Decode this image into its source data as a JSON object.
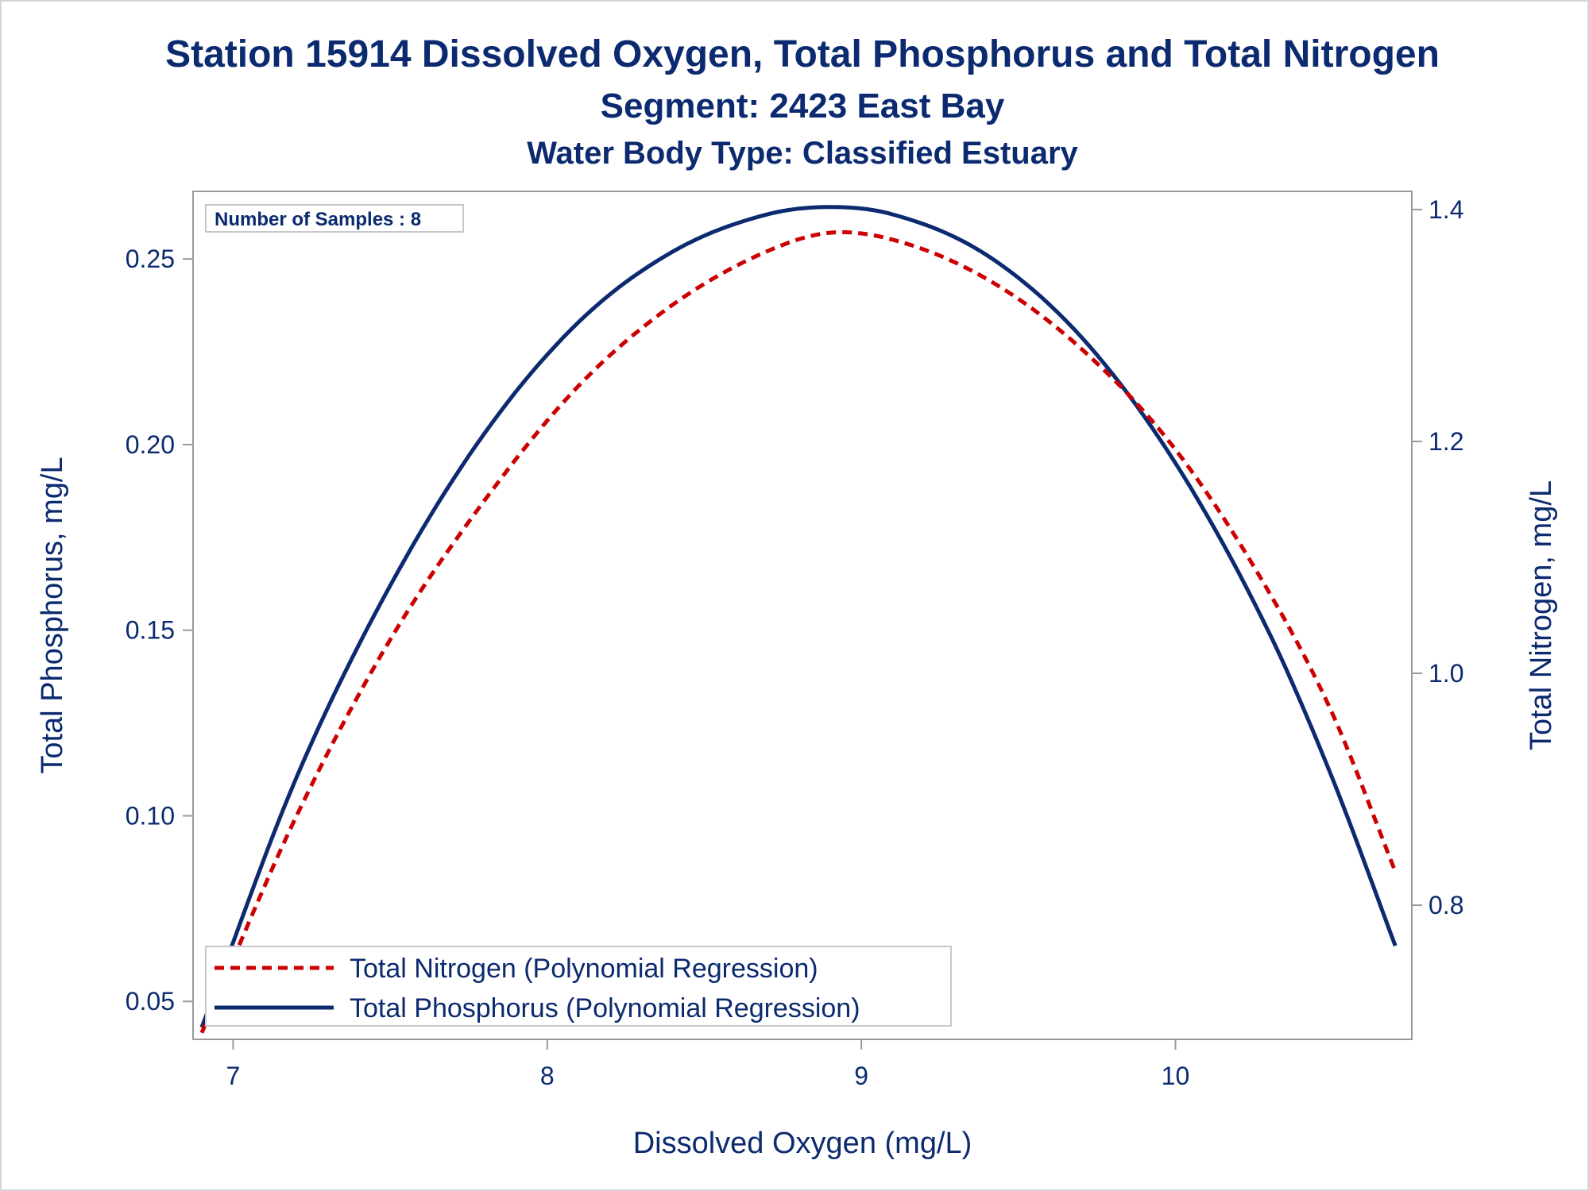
{
  "title": "Station 15914  Dissolved Oxygen, Total Phosphorus and Total Nitrogen",
  "subtitle": "Segment: 2423  East Bay",
  "subtitle2": "Water Body Type: Classified Estuary",
  "inset_text": "Number of Samples : 8",
  "colors": {
    "phosphorus": "#0b2a6f",
    "nitrogen": "#cc0000",
    "text": "#0b2a6f",
    "axis": "#9a9a9a"
  },
  "chart_data": {
    "type": "line",
    "xlabel": "Dissolved Oxygen (mg/L)",
    "ylabel": "Total Phosphorus, mg/L",
    "y2label": "Total Nitrogen, mg/L",
    "xlim": [
      6.875,
      10.75
    ],
    "ylim": [
      0.04,
      0.268
    ],
    "y2lim": [
      0.685,
      1.415
    ],
    "xticks": [
      "7",
      "8",
      "9",
      "10"
    ],
    "yticks": [
      "0.05",
      "0.10",
      "0.15",
      "0.20",
      "0.25"
    ],
    "y2ticks": [
      "0.8",
      "1.0",
      "1.2",
      "1.4"
    ],
    "grid": false,
    "legend_position": "bottom-left",
    "series": [
      {
        "name": "Total Nitrogen (Polynomial Regression)",
        "axis": "right",
        "style": "dashed",
        "color": "#cc0000",
        "x": [
          6.9,
          7.2,
          7.5,
          7.8,
          8.1,
          8.4,
          8.7,
          8.9,
          9.1,
          9.4,
          9.7,
          10.0,
          10.3,
          10.5,
          10.7
        ],
        "y": [
          0.69,
          0.876,
          1.029,
          1.149,
          1.248,
          1.318,
          1.364,
          1.38,
          1.374,
          1.34,
          1.28,
          1.193,
          1.069,
          0.965,
          0.829
        ]
      },
      {
        "name": "Total Phosphorus (Polynomial Regression)",
        "axis": "left",
        "style": "solid",
        "color": "#0b2a6f",
        "x": [
          6.9,
          7.2,
          7.5,
          7.8,
          8.1,
          8.4,
          8.7,
          8.9,
          9.1,
          9.4,
          9.7,
          10.0,
          10.3,
          10.5,
          10.7
        ],
        "y": [
          0.043,
          0.11,
          0.162,
          0.203,
          0.233,
          0.252,
          0.262,
          0.264,
          0.262,
          0.251,
          0.229,
          0.195,
          0.149,
          0.11,
          0.065
        ]
      }
    ]
  }
}
